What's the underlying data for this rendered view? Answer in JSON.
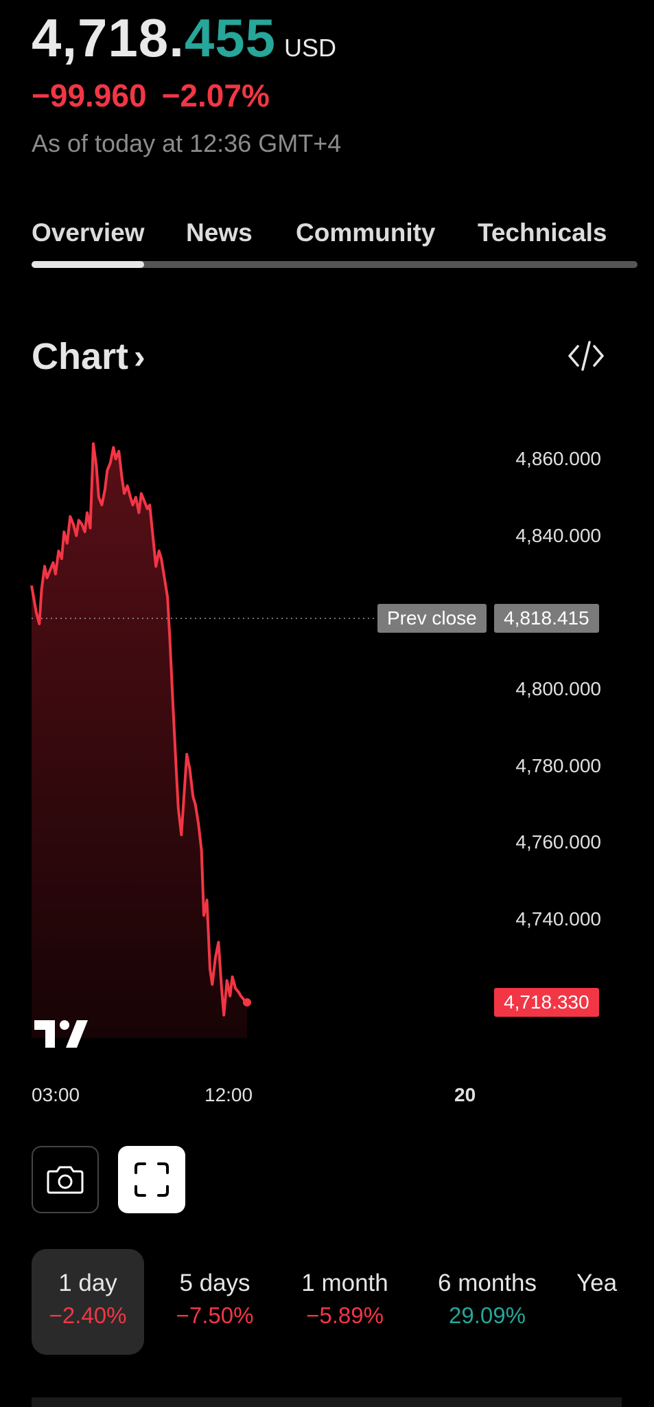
{
  "quote": {
    "price_int": "4,718.",
    "price_dec": "455",
    "currency": "USD",
    "change_abs": "−99.960",
    "change_pct": "−2.07%",
    "as_of": "As of today at 12:36 GMT+4"
  },
  "tabs": [
    {
      "label": "Overview",
      "active": true
    },
    {
      "label": "News",
      "active": false
    },
    {
      "label": "Community",
      "active": false
    },
    {
      "label": "Technicals",
      "active": false
    }
  ],
  "chart_section": {
    "title": "Chart",
    "chevron": "›",
    "embed_icon": "code-icon"
  },
  "chart_data": {
    "type": "area",
    "y_ticks": [
      "4,860.000",
      "4,840.000",
      "4,800.000",
      "4,780.000",
      "4,760.000",
      "4,740.000"
    ],
    "ylim": [
      4715,
      4865
    ],
    "x_ticks": [
      "03:00",
      "12:00",
      "20"
    ],
    "prev_close_label": "Prev close",
    "prev_close_value": "4,818.415",
    "prev_close": 4818.415,
    "last_value_label": "4,718.330",
    "last_value": 4718.33,
    "line_color": "#f23645",
    "x": [
      0,
      0.6,
      1,
      1.3,
      1.7,
      2,
      2.4,
      2.8,
      3.1,
      3.5,
      3.9,
      4.2,
      4.6,
      5,
      5.4,
      5.8,
      6.1,
      6.5,
      6.9,
      7.2,
      7.6,
      8,
      8.4,
      8.7,
      9.1,
      9.5,
      9.8,
      10.2,
      10.6,
      10.9,
      11.3,
      11.7,
      12,
      12.4,
      12.8,
      13.1,
      13.5,
      13.9,
      14.2,
      14.6,
      15,
      15.3,
      15.7,
      16.1,
      16.5,
      16.8,
      17.2,
      17.6,
      17.9,
      18.3,
      18.7,
      19,
      19.4,
      19.8,
      20.1,
      20.5,
      20.9,
      21.2,
      21.6,
      22,
      22.3,
      22.7,
      23.1,
      23.4,
      23.8,
      24.2,
      24.6,
      24.9,
      25.3,
      25.7,
      26.0,
      26.4,
      26.8,
      27.1,
      27.5,
      27.9
    ],
    "values": [
      4827,
      4820,
      4817,
      4826,
      4832,
      4829,
      4831,
      4833,
      4830,
      4836,
      4834,
      4841,
      4838,
      4845,
      4843,
      4840,
      4844,
      4843,
      4841,
      4846,
      4842,
      4864,
      4858,
      4850,
      4848,
      4852,
      4857,
      4859,
      4863,
      4860,
      4862,
      4855,
      4851,
      4853,
      4850,
      4848,
      4850,
      4846,
      4851,
      4849,
      4847,
      4848,
      4840,
      4832,
      4836,
      4834,
      4829,
      4824,
      4813,
      4796,
      4780,
      4769,
      4762,
      4774,
      4783,
      4779,
      4772,
      4770,
      4765,
      4758,
      4741,
      4745,
      4727,
      4723,
      4730,
      4734,
      4722,
      4715,
      4724,
      4720,
      4725,
      4722,
      4721,
      4720,
      4719,
      4718.33
    ],
    "x_range": [
      0,
      59
    ],
    "x_tick_positions": [
      0,
      22.5,
      57
    ]
  },
  "toolbar": {
    "camera_icon": "camera-icon",
    "fullscreen_icon": "fullscreen-icon"
  },
  "periods": [
    {
      "label": "1 day",
      "change": "−2.40%",
      "dir": "neg",
      "active": true
    },
    {
      "label": "5 days",
      "change": "−7.50%",
      "dir": "neg",
      "active": false
    },
    {
      "label": "1 month",
      "change": "−5.89%",
      "dir": "neg",
      "active": false
    },
    {
      "label": "6 months",
      "change": "29.09%",
      "dir": "pos",
      "active": false
    },
    {
      "label": "Yea",
      "change": "",
      "dir": "pos",
      "active": false
    }
  ]
}
